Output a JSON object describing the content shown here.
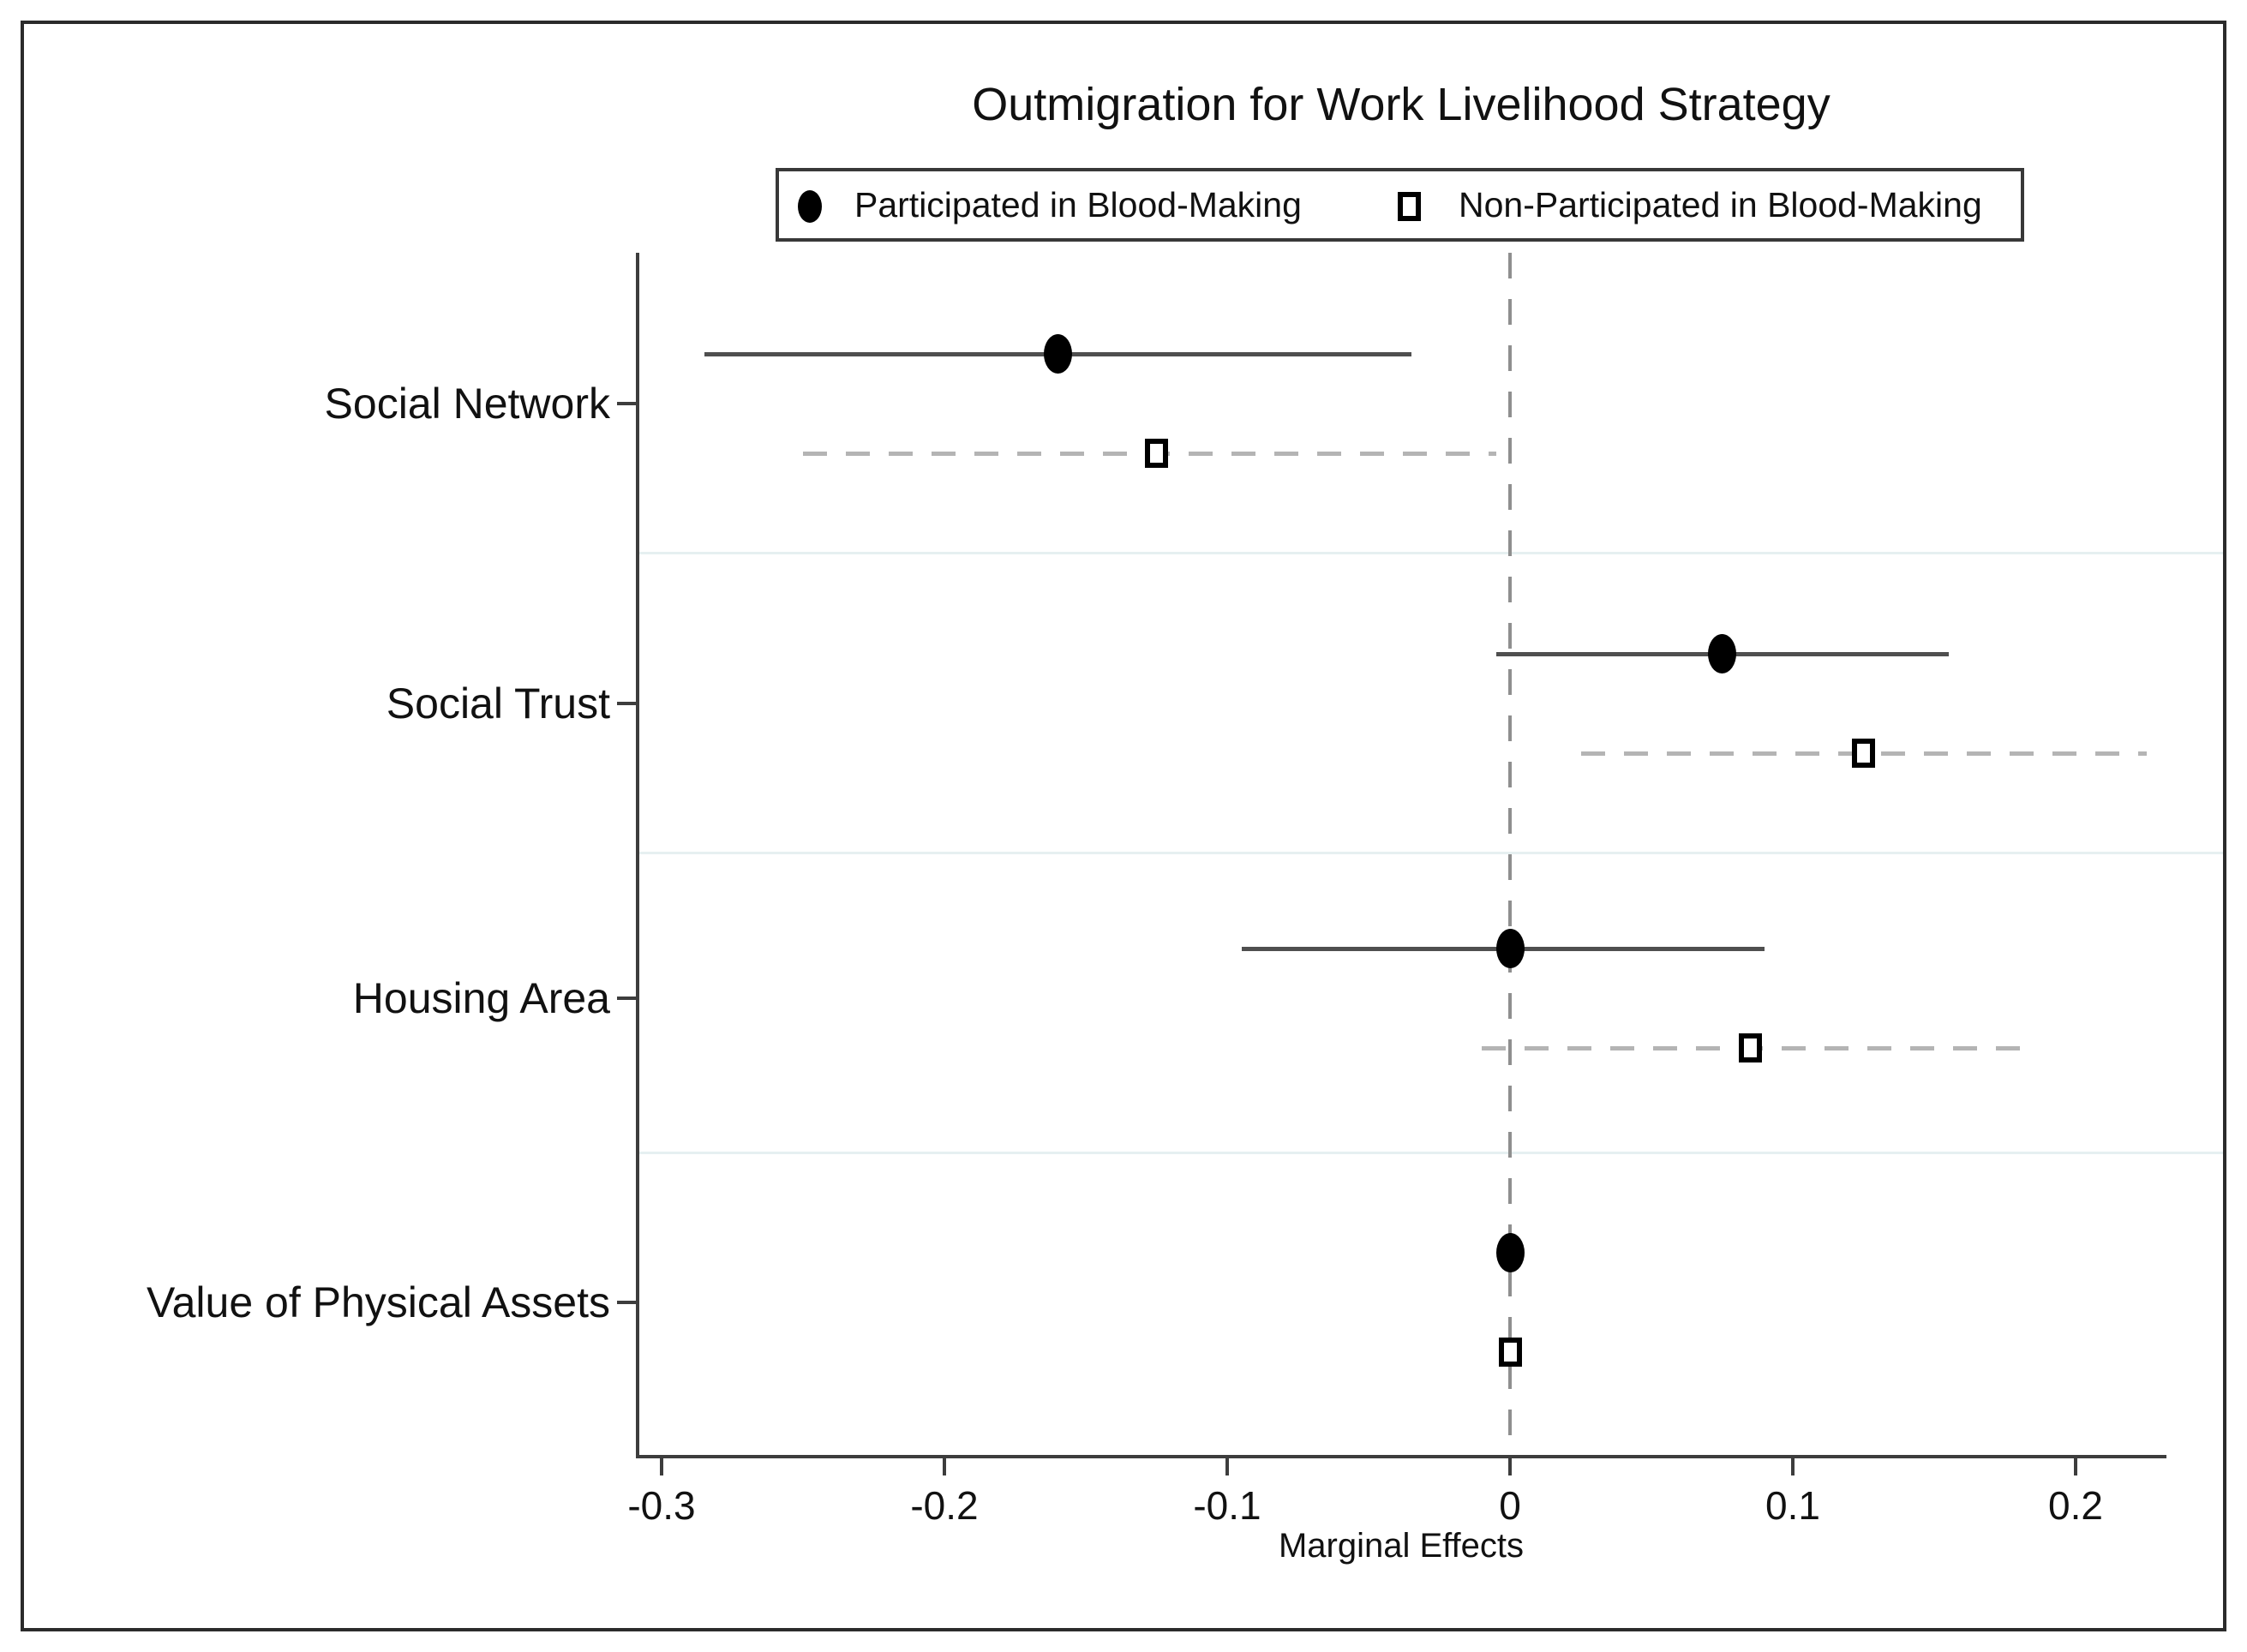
{
  "chart_data": {
    "type": "scatter",
    "subtype": "dot-and-whisker-coefficient-plot",
    "orientation": "horizontal",
    "title": "Outmigration for Work Livelihood Strategy",
    "xlabel": "Marginal Effects",
    "xlim": [
      -0.31,
      0.232
    ],
    "x_ticks": [
      -0.3,
      -0.2,
      -0.1,
      0,
      0.1,
      0.2
    ],
    "x_tick_labels": [
      "-0.3",
      "-0.2",
      "-0.1",
      "0",
      "0.1",
      "0.2"
    ],
    "grid": "off",
    "zero_reference_line": 0,
    "legend_position": "top",
    "categories": [
      "Social Network",
      "Social Trust",
      "Housing Area",
      "Value of Physical Assets"
    ],
    "series": [
      {
        "name": "Participated in Blood-Making",
        "marker": "filled-circle",
        "line_style": "solid",
        "estimates": [
          -0.16,
          0.075,
          0.0,
          0.0
        ],
        "ci_low": [
          -0.285,
          -0.005,
          -0.095,
          0.0
        ],
        "ci_high": [
          -0.035,
          0.155,
          0.09,
          0.0
        ]
      },
      {
        "name": "Non-Participated in Blood-Making",
        "marker": "open-square",
        "line_style": "dashed",
        "estimates": [
          -0.125,
          0.125,
          0.085,
          0.0
        ],
        "ci_low": [
          -0.25,
          0.025,
          -0.01,
          0.0
        ],
        "ci_high": [
          -0.005,
          0.225,
          0.185,
          0.0
        ]
      }
    ],
    "style": {
      "solid_ci_color": "#4f4f4f",
      "dashed_ci_color": "#b4b4b4",
      "marker_color": "#000000",
      "zero_line_color": "#8f8f8f",
      "axis_color": "#3d3d3d",
      "separator_color": "#e6f0f1",
      "text_color": "#111111",
      "background": "#ffffff"
    }
  }
}
